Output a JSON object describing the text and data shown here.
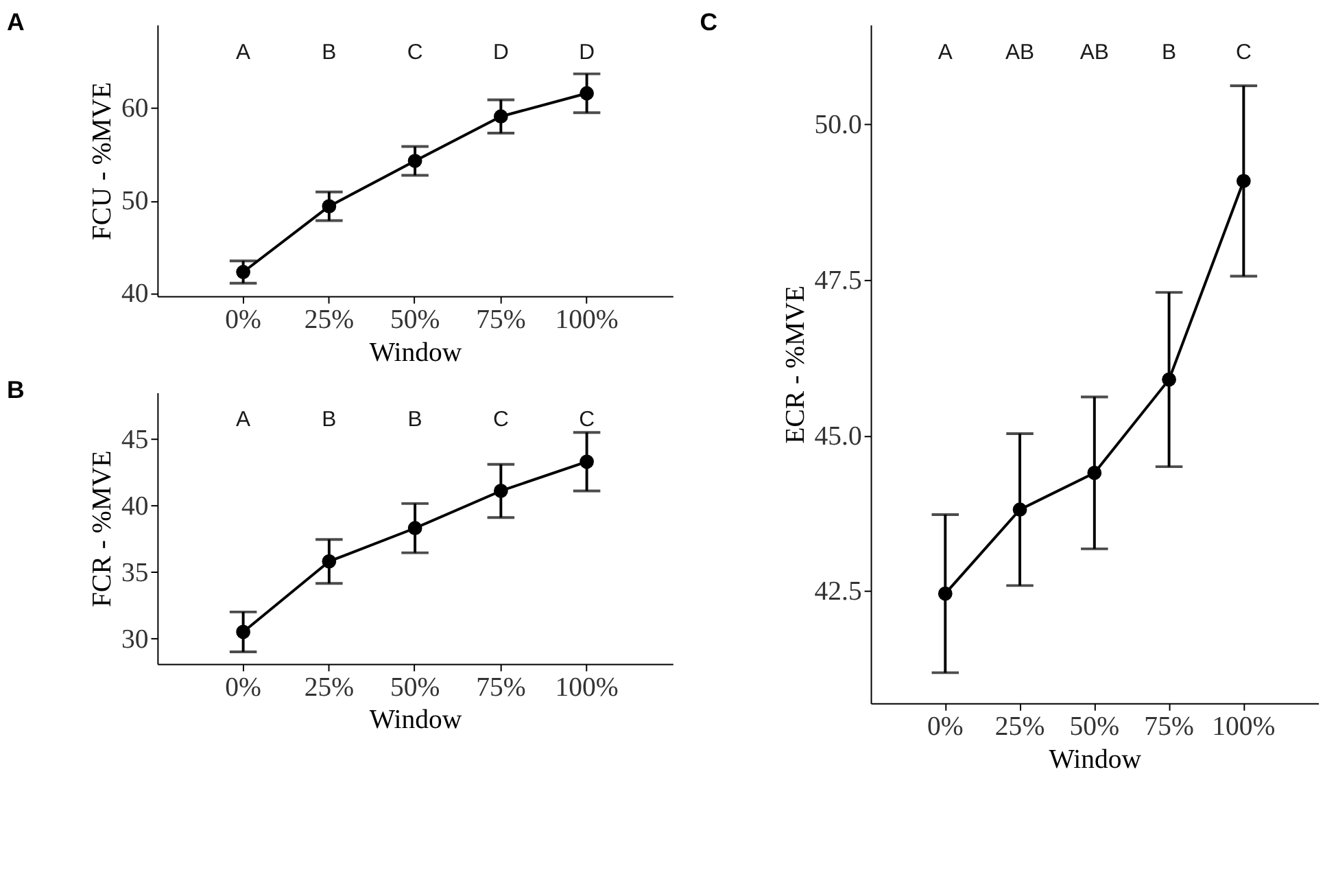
{
  "chart_data": [
    {
      "type": "line",
      "title": "A",
      "xlabel": "Window",
      "ylabel": "FCU - %MVE",
      "categories": [
        "0%",
        "25%",
        "50%",
        "75%",
        "100%"
      ],
      "values": [
        42.3,
        49.4,
        54.3,
        59.1,
        61.6
      ],
      "errors": [
        1.2,
        1.55,
        1.55,
        1.8,
        2.1
      ],
      "color": "#000000",
      "marker": "circle",
      "ylim": [
        39.7,
        69
      ],
      "yticks": [
        40,
        50,
        60
      ],
      "grid": false,
      "line_style": "solid",
      "annotations": [
        "A",
        "B",
        "C",
        "D",
        "D"
      ]
    },
    {
      "type": "line",
      "title": "B",
      "xlabel": "Window",
      "ylabel": "FCR - %MVE",
      "categories": [
        "0%",
        "25%",
        "50%",
        "75%",
        "100%"
      ],
      "values": [
        30.5,
        35.8,
        38.3,
        41.1,
        43.3
      ],
      "errors": [
        1.5,
        1.65,
        1.85,
        2.0,
        2.2
      ],
      "color": "#000000",
      "marker": "circle",
      "ylim": [
        28.1,
        48.5
      ],
      "yticks": [
        30,
        35,
        40,
        45
      ],
      "grid": false,
      "line_style": "solid",
      "annotations": [
        "A",
        "B",
        "B",
        "C",
        "C"
      ]
    },
    {
      "type": "line",
      "title": "C",
      "xlabel": "Window",
      "ylabel": "ECR - %MVE",
      "categories": [
        "0%",
        "25%",
        "50%",
        "75%",
        "100%"
      ],
      "values": [
        42.46,
        43.81,
        44.4,
        45.9,
        49.09
      ],
      "errors": [
        1.27,
        1.22,
        1.22,
        1.4,
        1.53
      ],
      "color": "#000000",
      "marker": "circle",
      "ylim": [
        40.7,
        51.6
      ],
      "yticks": [
        42.5,
        {
          "value": 45,
          "label": "45.0"
        },
        47.5,
        {
          "value": 50,
          "label": "50.0"
        }
      ],
      "grid": false,
      "line_style": "solid",
      "annotations": [
        "A",
        "AB",
        "AB",
        "B",
        "C"
      ]
    }
  ]
}
